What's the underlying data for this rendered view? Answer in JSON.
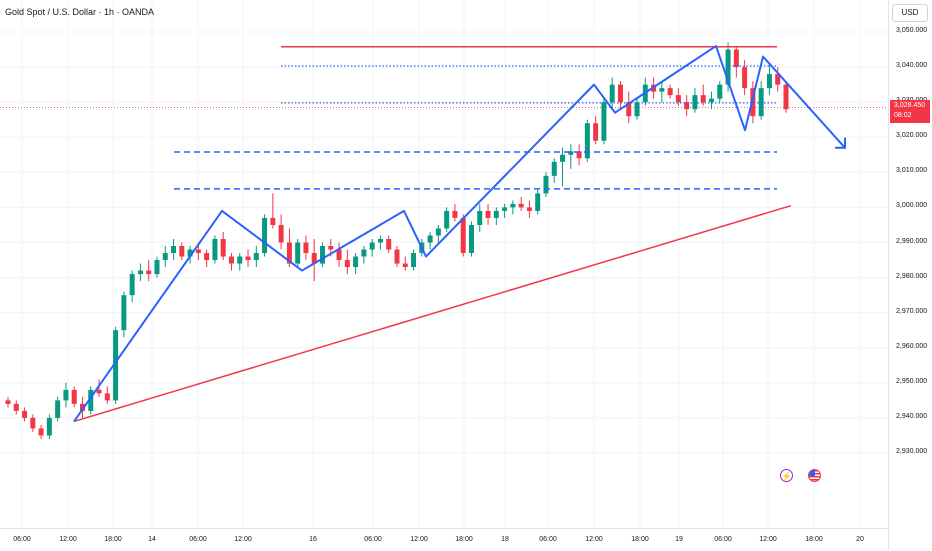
{
  "header": {
    "title": "Gold Spot / U.S. Dollar · 1h · OANDA",
    "currency": "USD"
  },
  "price_tag": {
    "price": "3,028.450",
    "countdown": "08:02",
    "color": "#f23645"
  },
  "price_axis": {
    "labels": [
      "3,050.000",
      "3,040.000",
      "3,030.000",
      "3,020.000",
      "3,010.000",
      "3,000.000",
      "2,990.000",
      "2,980.000",
      "2,970.000",
      "2,960.000",
      "2,950.000",
      "2,940.000",
      "2,930.000"
    ]
  },
  "time_axis": {
    "labels": [
      "06:00",
      "12:00",
      "18:00",
      "14",
      "06:00",
      "12:00",
      "16",
      "06:00",
      "12:00",
      "18:00",
      "18",
      "06:00",
      "12:00",
      "18:00",
      "19",
      "06:00",
      "12:00",
      "18:00",
      "20"
    ]
  },
  "events": {
    "flash_icon": "lightning-icon",
    "flag_icon": "us-flag-icon"
  },
  "colors": {
    "up": "#089981",
    "down": "#f23645",
    "drawing_blue": "#2962ff",
    "drawing_red": "#f23645"
  },
  "chart_data": {
    "type": "candlestick",
    "title": "Gold Spot / U.S. Dollar · 1h · OANDA",
    "y_unit": "USD",
    "ylim": [
      2924,
      3053
    ],
    "grid": true,
    "ohlc_approx": [
      [
        2945,
        2946,
        2943,
        2944
      ],
      [
        2944,
        2945,
        2941,
        2942
      ],
      [
        2942,
        2943,
        2939,
        2940
      ],
      [
        2940,
        2941,
        2936,
        2937
      ],
      [
        2937,
        2938,
        2934,
        2935
      ],
      [
        2935,
        2941,
        2934,
        2940
      ],
      [
        2940,
        2946,
        2939,
        2945
      ],
      [
        2945,
        2950,
        2943,
        2948
      ],
      [
        2948,
        2949,
        2943,
        2944
      ],
      [
        2944,
        2946,
        2940,
        2942
      ],
      [
        2942,
        2949,
        2941,
        2948
      ],
      [
        2948,
        2951,
        2946,
        2947
      ],
      [
        2947,
        2949,
        2944,
        2945
      ],
      [
        2945,
        2966,
        2944,
        2965
      ],
      [
        2965,
        2976,
        2963,
        2975
      ],
      [
        2975,
        2982,
        2973,
        2981
      ],
      [
        2981,
        2984,
        2979,
        2982
      ],
      [
        2982,
        2985,
        2979,
        2981
      ],
      [
        2981,
        2986,
        2980,
        2985
      ],
      [
        2985,
        2989,
        2983,
        2987
      ],
      [
        2987,
        2991,
        2985,
        2989
      ],
      [
        2989,
        2990,
        2985,
        2986
      ],
      [
        2986,
        2989,
        2984,
        2988
      ],
      [
        2988,
        2990,
        2985,
        2987
      ],
      [
        2987,
        2988,
        2983,
        2985
      ],
      [
        2985,
        2992,
        2984,
        2991
      ],
      [
        2991,
        2993,
        2985,
        2986
      ],
      [
        2986,
        2987,
        2982,
        2984
      ],
      [
        2984,
        2987,
        2982,
        2986
      ],
      [
        2986,
        2988,
        2983,
        2985
      ],
      [
        2985,
        2989,
        2983,
        2987
      ],
      [
        2987,
        2998,
        2986,
        2997
      ],
      [
        2997,
        3004,
        2994,
        2995
      ],
      [
        2995,
        2998,
        2988,
        2990
      ],
      [
        2990,
        2994,
        2983,
        2984
      ],
      [
        2984,
        2991,
        2983,
        2990
      ],
      [
        2990,
        2992,
        2985,
        2987
      ],
      [
        2987,
        2991,
        2979,
        2984
      ],
      [
        2984,
        2990,
        2983,
        2989
      ],
      [
        2989,
        2991,
        2986,
        2988
      ],
      [
        2988,
        2990,
        2983,
        2985
      ],
      [
        2985,
        2988,
        2981,
        2983
      ],
      [
        2983,
        2987,
        2981,
        2986
      ],
      [
        2986,
        2989,
        2984,
        2988
      ],
      [
        2988,
        2991,
        2986,
        2990
      ],
      [
        2990,
        2992,
        2988,
        2991
      ],
      [
        2991,
        2992,
        2987,
        2988
      ],
      [
        2988,
        2989,
        2983,
        2984
      ],
      [
        2984,
        2986,
        2982,
        2983
      ],
      [
        2983,
        2988,
        2982,
        2987
      ],
      [
        2987,
        2991,
        2986,
        2990
      ],
      [
        2990,
        2993,
        2988,
        2992
      ],
      [
        2992,
        2995,
        2990,
        2994
      ],
      [
        2994,
        3000,
        2993,
        2999
      ],
      [
        2999,
        3001,
        2996,
        2997
      ],
      [
        2997,
        2998,
        2986,
        2987
      ],
      [
        2987,
        2996,
        2986,
        2995
      ],
      [
        2995,
        3001,
        2993,
        2999
      ],
      [
        2999,
        3001,
        2995,
        2997
      ],
      [
        2997,
        3000,
        2995,
        2999
      ],
      [
        2999,
        3001,
        2997,
        3000
      ],
      [
        3000,
        3002,
        2998,
        3001
      ],
      [
        3001,
        3003,
        2999,
        3000
      ],
      [
        3000,
        3002,
        2997,
        2999
      ],
      [
        2999,
        3005,
        2998,
        3004
      ],
      [
        3004,
        3010,
        3003,
        3009
      ],
      [
        3009,
        3014,
        3007,
        3013
      ],
      [
        3013,
        3017,
        3006,
        3015
      ],
      [
        3015,
        3018,
        3011,
        3016
      ],
      [
        3016,
        3018,
        3012,
        3014
      ],
      [
        3014,
        3025,
        3013,
        3024
      ],
      [
        3024,
        3026,
        3018,
        3019
      ],
      [
        3019,
        3031,
        3018,
        3030
      ],
      [
        3030,
        3037,
        3028,
        3035
      ],
      [
        3035,
        3036,
        3028,
        3030
      ],
      [
        3030,
        3033,
        3024,
        3026
      ],
      [
        3026,
        3031,
        3025,
        3030
      ],
      [
        3030,
        3037,
        3029,
        3035
      ],
      [
        3035,
        3037,
        3031,
        3033
      ],
      [
        3033,
        3036,
        3030,
        3034
      ],
      [
        3034,
        3035,
        3031,
        3032
      ],
      [
        3032,
        3034,
        3029,
        3030
      ],
      [
        3030,
        3032,
        3026,
        3028
      ],
      [
        3028,
        3034,
        3027,
        3032
      ],
      [
        3032,
        3035,
        3029,
        3030
      ],
      [
        3030,
        3033,
        3028,
        3031
      ],
      [
        3031,
        3036,
        3030,
        3035
      ],
      [
        3035,
        3047,
        3033,
        3045
      ],
      [
        3045,
        3046,
        3037,
        3040
      ],
      [
        3040,
        3042,
        3032,
        3034
      ],
      [
        3034,
        3036,
        3024,
        3026
      ],
      [
        3026,
        3036,
        3025,
        3034
      ],
      [
        3034,
        3041,
        3032,
        3038
      ],
      [
        3038,
        3040,
        3033,
        3035
      ],
      [
        3035,
        3036,
        3027,
        3028
      ]
    ],
    "annotations": {
      "resistance_line": 3045.8,
      "dotted_levels": [
        3040.3,
        3029.8
      ],
      "dashed_levels": [
        3015.8,
        3005.3
      ],
      "trend_line": [
        [
          2939,
          3000.5
        ]
      ],
      "zigzag_points": [
        2939,
        2999,
        2982,
        2999,
        2986,
        3035,
        3027,
        3046,
        3022,
        3043,
        3017
      ]
    }
  }
}
